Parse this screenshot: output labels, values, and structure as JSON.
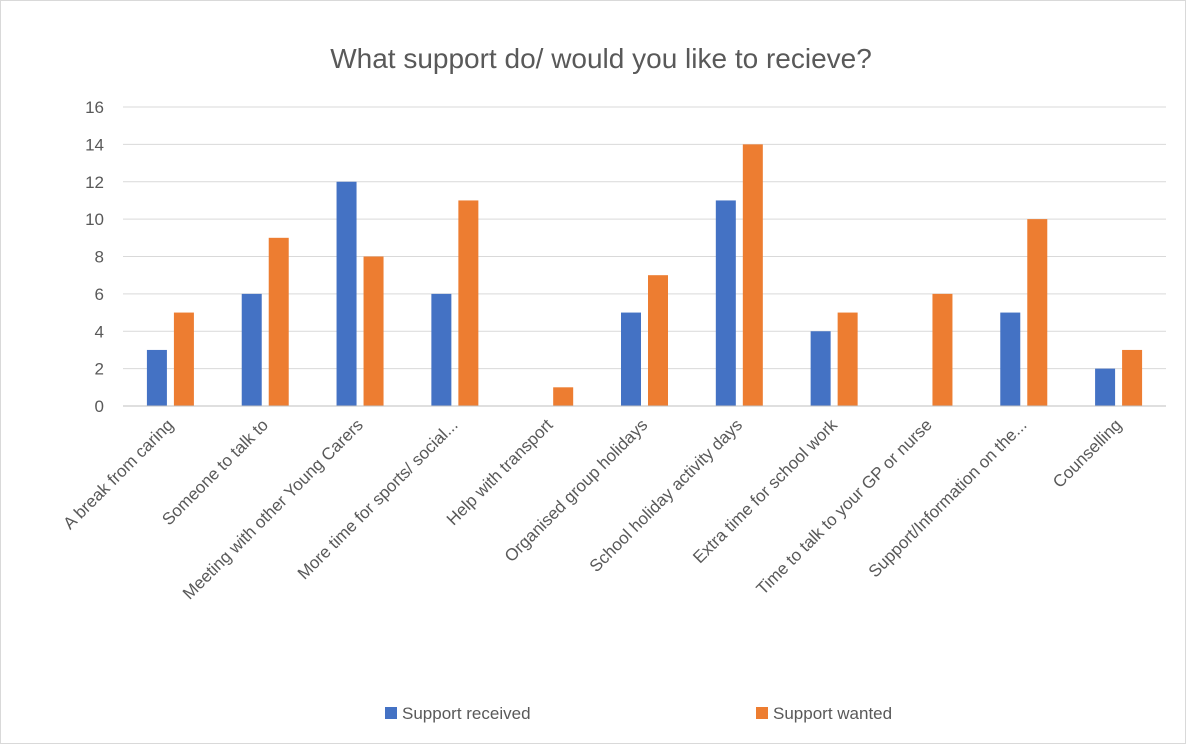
{
  "chart_data": {
    "type": "bar",
    "title": "What support do/ would you like to recieve?",
    "xlabel": "",
    "ylabel": "",
    "ylim": [
      0,
      16
    ],
    "yticks": [
      0,
      2,
      4,
      6,
      8,
      10,
      12,
      14,
      16
    ],
    "grid": true,
    "legend_position": "bottom",
    "categories": [
      "A break from caring",
      "Someone to talk to",
      "Meeting with other Young Carers",
      "More time for sports/ social...",
      "Help with transport",
      "Organised group holidays",
      "School holiday activity days",
      "Extra time for school work",
      "Time to talk to your GP or nurse",
      "Support/Information on the...",
      "Counselling"
    ],
    "series": [
      {
        "name": "Support received",
        "color": "#4472c4",
        "values": [
          3,
          6,
          12,
          6,
          0,
          5,
          11,
          4,
          0,
          5,
          2
        ]
      },
      {
        "name": "Support wanted",
        "color": "#ed7d31",
        "values": [
          5,
          9,
          8,
          11,
          1,
          7,
          14,
          5,
          6,
          10,
          3
        ]
      }
    ]
  }
}
